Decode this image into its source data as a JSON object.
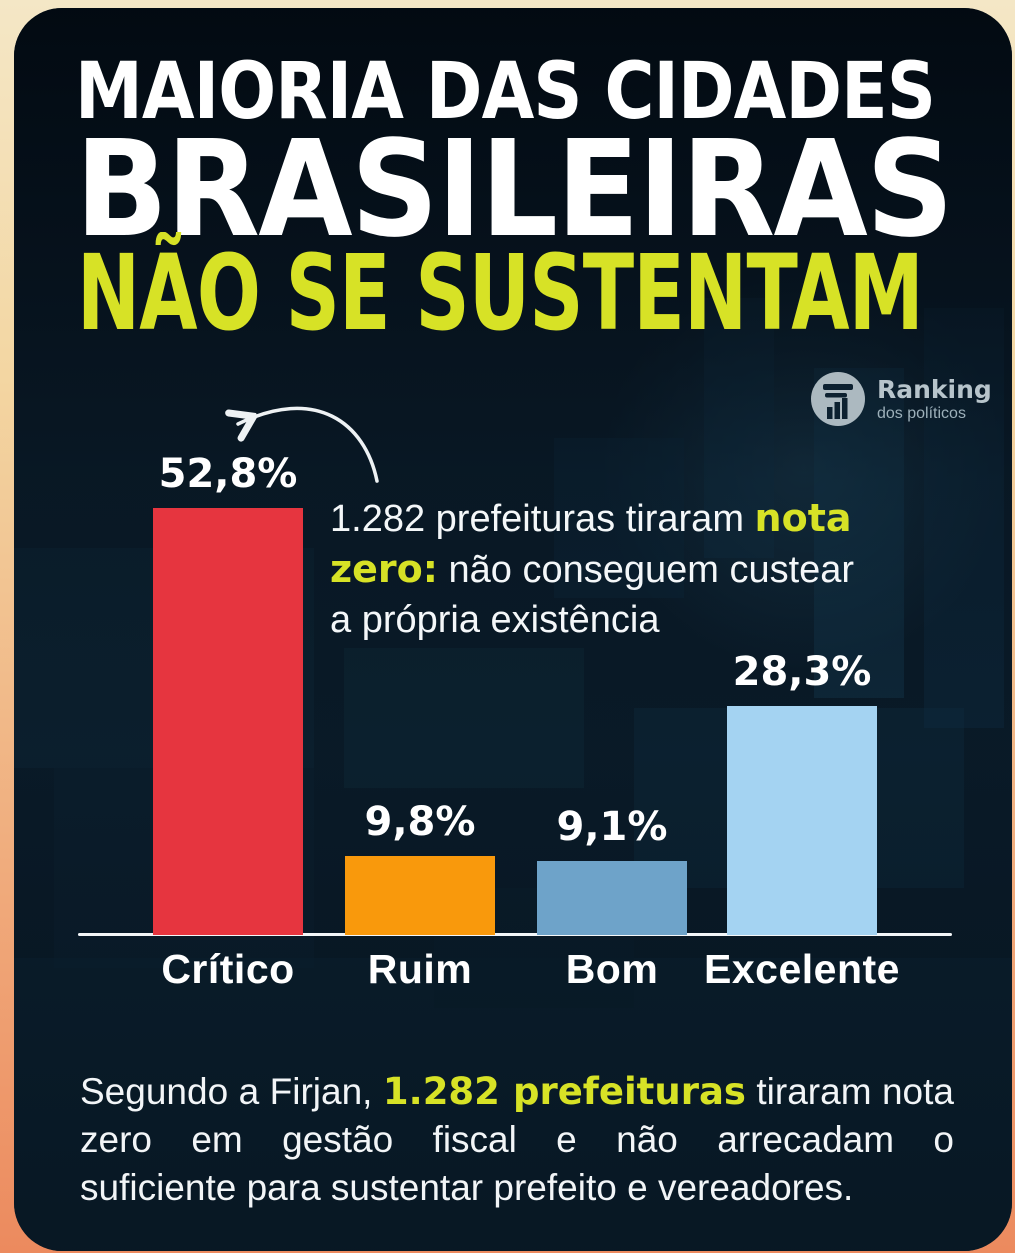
{
  "title": {
    "line1": "MAIORIA DAS CIDADES",
    "line2": "BRASILEIRAS",
    "line3": "NÃO SE SUSTENTAM"
  },
  "logo": {
    "name": "Ranking",
    "subtitle": "dos políticos"
  },
  "annotation": {
    "line1_pre": "1.282 prefeituras tiraram ",
    "line1_em": "nota",
    "line2_em": "zero:",
    "line2_post": " não conseguem custear",
    "line3": "a própria existência"
  },
  "footer": {
    "line1_pre": "Segundo a Firjan, ",
    "line1_em": "1.282 prefeituras",
    "line1_post": " tiraram nota",
    "line2": "zero em gestão fiscal e não arrecadam o",
    "line3": "suficiente para sustentar prefeito e vereadores."
  },
  "colors": {
    "accent_lime": "#d7e226",
    "card_background": "#0a1b29",
    "frame_gradient_top": "#f4e7c6",
    "frame_gradient_bottom": "#ec8a5e",
    "text_white": "#ffffff"
  },
  "chart_data": {
    "type": "bar",
    "categories": [
      "Crítico",
      "Ruim",
      "Bom",
      "Excelente"
    ],
    "values": [
      52.8,
      9.8,
      9.1,
      28.3
    ],
    "value_labels": [
      "52,8%",
      "9,8%",
      "9,1%",
      "28,3%"
    ],
    "bar_colors": [
      "#e6353f",
      "#f9990c",
      "#6ea3c9",
      "#a4d3f2"
    ],
    "title": "",
    "xlabel": "",
    "ylabel": "",
    "ylim": [
      0,
      55
    ],
    "grid": false,
    "legend": false,
    "value_suffix": "%"
  }
}
